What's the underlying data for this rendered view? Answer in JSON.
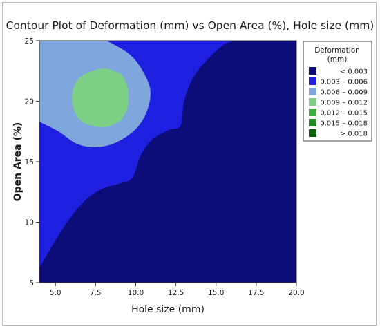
{
  "chart_data": {
    "type": "contour",
    "title": "Contour Plot of Deformation (mm) vs Open Area (%), Hole size (mm)",
    "xlabel": "Hole size (mm)",
    "ylabel": "Open Area (%)",
    "xlim": [
      4,
      20
    ],
    "ylim": [
      5,
      25
    ],
    "xticks": [
      5.0,
      7.5,
      10.0,
      12.5,
      15.0,
      17.5,
      20.0
    ],
    "xtick_labels": [
      "5.0",
      "7.5",
      "10.0",
      "12.5",
      "15.0",
      "17.5",
      "20.0"
    ],
    "yticks": [
      5,
      10,
      15,
      20,
      25
    ],
    "ytick_labels": [
      "5",
      "10",
      "15",
      "20",
      "25"
    ],
    "legend": {
      "title": "Deformation",
      "subtitle": "(mm)",
      "placement": "right",
      "entries": [
        {
          "label": "<  0.003",
          "color": "#0d0d7a"
        },
        {
          "label": "0.003  –  0.006",
          "color": "#1f1fe0"
        },
        {
          "label": "0.006  –  0.009",
          "color": "#7fa7dd"
        },
        {
          "label": "0.009  –  0.012",
          "color": "#7dcf85"
        },
        {
          "label": "0.012  –  0.015",
          "color": "#3fae3f"
        },
        {
          "label": "0.015  –  0.018",
          "color": "#1f8a1f"
        },
        {
          "label": ">  0.018",
          "color": "#0a620a"
        }
      ]
    },
    "regions": [
      {
        "band": "< 0.003",
        "color": "#0d0d7a",
        "boundary": [
          [
            4,
            5
          ],
          [
            4,
            6.2
          ],
          [
            5,
            8.5
          ],
          [
            6,
            10.5
          ],
          [
            7,
            12
          ],
          [
            8,
            12.8
          ],
          [
            9,
            13.2
          ],
          [
            9.8,
            13.7
          ],
          [
            10.3,
            15.5
          ],
          [
            11,
            16.8
          ],
          [
            12,
            17.6
          ],
          [
            12.8,
            18
          ],
          [
            13,
            20
          ],
          [
            13.6,
            22
          ],
          [
            14.5,
            23.5
          ],
          [
            15.5,
            24.7
          ],
          [
            16.2,
            25
          ],
          [
            20,
            25
          ],
          [
            20,
            5
          ]
        ]
      },
      {
        "band": "0.006 – 0.009",
        "color": "#7fa7dd",
        "boundary": [
          [
            4,
            25
          ],
          [
            8.2,
            25
          ],
          [
            9.5,
            24
          ],
          [
            10.3,
            22.8
          ],
          [
            10.9,
            21
          ],
          [
            10.7,
            19.2
          ],
          [
            10,
            17.7
          ],
          [
            8.8,
            16.6
          ],
          [
            7.5,
            16.2
          ],
          [
            6.3,
            16.5
          ],
          [
            5.2,
            17.5
          ],
          [
            4,
            18.3
          ]
        ]
      },
      {
        "band": "0.009 – 0.012",
        "color": "#7dcf85",
        "boundary": [
          [
            8.0,
            22.7
          ],
          [
            9.0,
            22.3
          ],
          [
            9.4,
            21.5
          ],
          [
            9.55,
            20.4
          ],
          [
            9.45,
            19.3
          ],
          [
            9.0,
            18.4
          ],
          [
            8.2,
            17.9
          ],
          [
            7.2,
            18.0
          ],
          [
            6.5,
            18.5
          ],
          [
            6.1,
            19.5
          ],
          [
            6.05,
            20.6
          ],
          [
            6.3,
            21.6
          ],
          [
            6.9,
            22.3
          ]
        ]
      }
    ],
    "background_band": "0.003 – 0.006",
    "background_color": "#1f1fe0",
    "grid": false
  }
}
